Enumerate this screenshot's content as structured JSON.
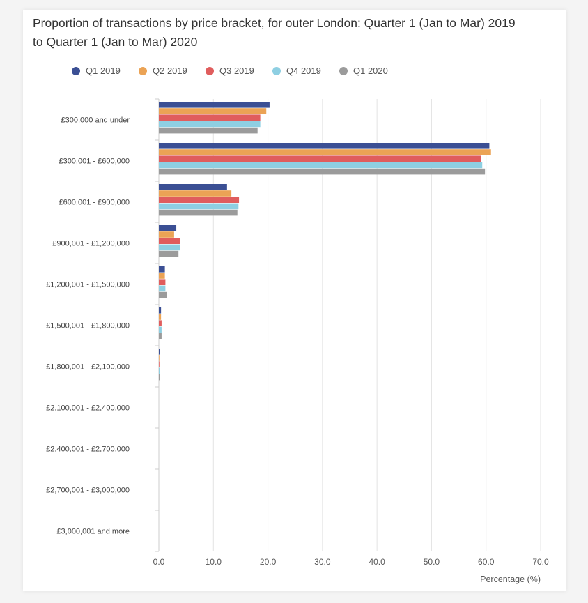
{
  "chart_data": {
    "type": "bar",
    "orientation": "horizontal",
    "title": "Proportion of transactions by price bracket, for outer London: Quarter 1 (Jan to Mar) 2019 to Quarter 1 (Jan to Mar) 2020",
    "xlabel": "Percentage (%)",
    "ylabel": "",
    "xlim": [
      0,
      70
    ],
    "x_ticks": [
      "0.0",
      "10.0",
      "20.0",
      "30.0",
      "40.0",
      "50.0",
      "60.0",
      "70.0"
    ],
    "grid": true,
    "legend_position": "top",
    "categories": [
      "£300,000 and under",
      "£300,001 - £600,000",
      "£600,001 - £900,000",
      "£900,001 - £1,200,000",
      "£1,200,001 - £1,500,000",
      "£1,500,001 - £1,800,000",
      "£1,800,001 - £2,100,000",
      "£2,100,001 - £2,400,000",
      "£2,400,001 - £2,700,000",
      "£2,700,001 - £3,000,000",
      "£3,000,001 and more"
    ],
    "series": [
      {
        "name": "Q1 2019",
        "color": "#3b4f94",
        "values": [
          20.3,
          60.6,
          12.5,
          3.2,
          1.1,
          0.4,
          0.2,
          0.0,
          0.0,
          0.0,
          0.0
        ]
      },
      {
        "name": "Q2 2019",
        "color": "#eba355",
        "values": [
          19.7,
          60.9,
          13.3,
          2.8,
          1.1,
          0.4,
          0.1,
          0.0,
          0.0,
          0.0,
          0.0
        ]
      },
      {
        "name": "Q3 2019",
        "color": "#e05d5d",
        "values": [
          18.6,
          59.1,
          14.7,
          3.9,
          1.2,
          0.5,
          0.1,
          0.0,
          0.0,
          0.0,
          0.0
        ]
      },
      {
        "name": "Q4 2019",
        "color": "#8ecfe2",
        "values": [
          18.6,
          59.3,
          14.6,
          3.9,
          1.2,
          0.5,
          0.2,
          0.0,
          0.0,
          0.0,
          0.0
        ]
      },
      {
        "name": "Q1 2020",
        "color": "#9b9b9b",
        "values": [
          18.1,
          59.8,
          14.4,
          3.6,
          1.5,
          0.5,
          0.2,
          0.0,
          0.0,
          0.0,
          0.0
        ]
      }
    ]
  }
}
